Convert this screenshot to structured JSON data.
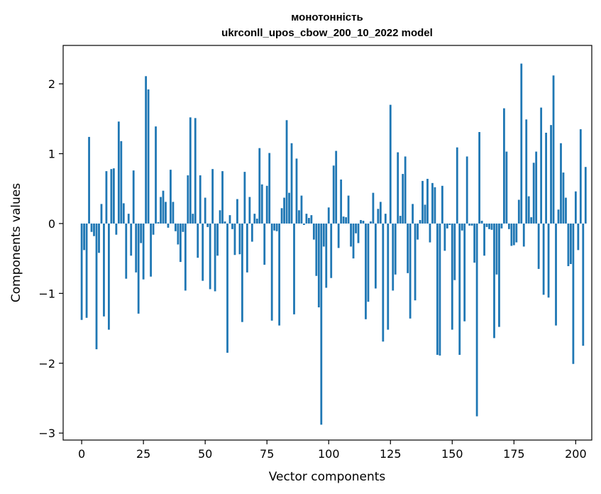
{
  "chart_data": {
    "type": "bar",
    "title": "монотонність",
    "subtitle": "ukrconll_upos_cbow_200_10_2022 model",
    "xlabel": "Vector components",
    "ylabel": "Components values",
    "xlim": [
      -7.5,
      206.5
    ],
    "ylim": [
      -3.1,
      2.55
    ],
    "xticks": [
      0,
      25,
      50,
      75,
      100,
      125,
      150,
      175,
      200
    ],
    "xtick_labels": [
      "0",
      "25",
      "50",
      "75",
      "100",
      "125",
      "150",
      "175",
      "200"
    ],
    "yticks": [
      -3,
      -2,
      -1,
      0,
      1,
      2
    ],
    "ytick_labels": [
      "−3",
      "−2",
      "−1",
      "0",
      "1",
      "2"
    ],
    "grid": false,
    "bar_color": "#1f77b4",
    "values": [
      -1.38,
      -0.38,
      -1.35,
      1.24,
      -0.12,
      -0.18,
      -1.8,
      -0.42,
      0.28,
      -1.33,
      0.75,
      -1.52,
      0.78,
      0.79,
      -0.16,
      1.46,
      1.18,
      0.29,
      -0.79,
      0.14,
      -0.46,
      0.76,
      -0.7,
      -1.29,
      -0.28,
      -0.8,
      2.11,
      1.92,
      -0.76,
      -0.16,
      1.39,
      0.02,
      0.38,
      0.47,
      0.31,
      -0.06,
      0.77,
      0.31,
      -0.11,
      -0.3,
      -0.55,
      -0.12,
      -0.96,
      0.69,
      1.52,
      0.14,
      1.51,
      -0.49,
      0.69,
      -0.82,
      0.37,
      -0.05,
      -0.94,
      0.78,
      -0.97,
      -0.46,
      0.19,
      0.75,
      0.03,
      -1.85,
      0.12,
      -0.08,
      -0.45,
      0.35,
      -0.44,
      -1.41,
      0.74,
      -0.7,
      0.38,
      -0.26,
      0.14,
      0.07,
      1.08,
      0.56,
      -0.59,
      0.54,
      1.01,
      -1.39,
      -0.1,
      -0.11,
      -1.46,
      0.22,
      0.37,
      1.48,
      0.44,
      1.15,
      -1.3,
      0.93,
      0.19,
      0.4,
      -0.02,
      0.14,
      0.08,
      0.12,
      -0.23,
      -0.75,
      -1.2,
      -2.88,
      -0.33,
      -0.92,
      0.23,
      -0.78,
      0.83,
      1.04,
      -0.35,
      0.63,
      0.1,
      0.09,
      0.4,
      -0.33,
      -0.5,
      -0.14,
      -0.28,
      0.05,
      0.04,
      -1.37,
      -1.12,
      0.03,
      0.44,
      -0.93,
      0.21,
      0.31,
      -1.69,
      0.14,
      -1.52,
      1.7,
      -0.96,
      -0.73,
      1.02,
      0.11,
      0.71,
      0.96,
      -0.71,
      -1.36,
      0.28,
      -1.1,
      -0.23,
      0.05,
      0.61,
      0.27,
      0.64,
      -0.27,
      0.58,
      0.52,
      -1.88,
      -1.89,
      0.54,
      -0.39,
      -0.07,
      -0.02,
      -1.52,
      -0.81,
      1.09,
      -1.88,
      -0.1,
      -1.4,
      0.96,
      -0.03,
      -0.03,
      -0.56,
      -2.76,
      1.31,
      0.04,
      -0.46,
      -0.05,
      -0.08,
      -0.09,
      -1.64,
      -0.73,
      -1.48,
      -0.07,
      1.65,
      1.03,
      -0.08,
      -0.32,
      -0.31,
      -0.27,
      0.34,
      2.29,
      -0.33,
      1.49,
      0.39,
      0.09,
      0.87,
      1.03,
      -0.65,
      1.66,
      -1.02,
      1.3,
      -1.06,
      1.41,
      2.12,
      -1.46,
      0.2,
      1.15,
      0.73,
      0.37,
      -0.61,
      -0.58,
      -2.01,
      0.46,
      -0.38,
      1.35,
      -1.75,
      0.81
    ]
  }
}
